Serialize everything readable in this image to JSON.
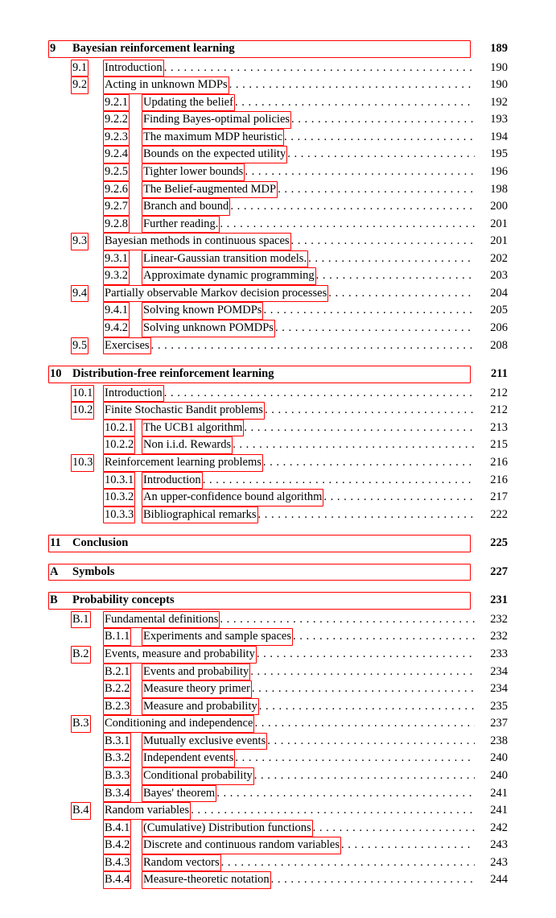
{
  "entries": [
    {
      "type": "chapter",
      "num": "9",
      "title": "Bayesian reinforcement learning",
      "page": "189"
    },
    {
      "type": "section",
      "num": "9.1",
      "title": "Introduction",
      "page": "190"
    },
    {
      "type": "section",
      "num": "9.2",
      "title": "Acting in unknown MDPs",
      "page": "190"
    },
    {
      "type": "subsection",
      "num": "9.2.1",
      "title": "Updating the belief",
      "page": "192"
    },
    {
      "type": "subsection",
      "num": "9.2.2",
      "title": "Finding Bayes-optimal policies",
      "page": "193"
    },
    {
      "type": "subsection",
      "num": "9.2.3",
      "title": "The maximum MDP heuristic",
      "page": "194"
    },
    {
      "type": "subsection",
      "num": "9.2.4",
      "title": "Bounds on the expected utility",
      "page": "195"
    },
    {
      "type": "subsection",
      "num": "9.2.5",
      "title": "Tighter lower bounds",
      "page": "196"
    },
    {
      "type": "subsection",
      "num": "9.2.6",
      "title": "The Belief-augmented MDP",
      "page": "198"
    },
    {
      "type": "subsection",
      "num": "9.2.7",
      "title": "Branch and bound",
      "page": "200"
    },
    {
      "type": "subsection",
      "num": "9.2.8",
      "title": "Further reading.",
      "page": "201"
    },
    {
      "type": "section",
      "num": "9.3",
      "title": "Bayesian methods in continuous spaces",
      "page": "201"
    },
    {
      "type": "subsection",
      "num": "9.3.1",
      "title": "Linear-Gaussian transition models.",
      "page": "202"
    },
    {
      "type": "subsection",
      "num": "9.3.2",
      "title": "Approximate dynamic programming",
      "page": "203"
    },
    {
      "type": "section",
      "num": "9.4",
      "title": "Partially observable Markov decision processes",
      "page": "204"
    },
    {
      "type": "subsection",
      "num": "9.4.1",
      "title": "Solving known POMDPs",
      "page": "205"
    },
    {
      "type": "subsection",
      "num": "9.4.2",
      "title": "Solving unknown POMDPs",
      "page": "206"
    },
    {
      "type": "section",
      "num": "9.5",
      "title": "Exercises",
      "page": "208"
    },
    {
      "type": "chapter",
      "num": "10",
      "title": "Distribution-free reinforcement learning",
      "page": "211"
    },
    {
      "type": "section",
      "num": "10.1",
      "title": "Introduction",
      "page": "212"
    },
    {
      "type": "section",
      "num": "10.2",
      "title": "Finite Stochastic Bandit problems",
      "page": "212"
    },
    {
      "type": "subsection",
      "num": "10.2.1",
      "title": "The UCB1 algorithm",
      "page": "213"
    },
    {
      "type": "subsection",
      "num": "10.2.2",
      "title": "Non i.i.d. Rewards",
      "page": "215"
    },
    {
      "type": "section",
      "num": "10.3",
      "title": "Reinforcement learning problems",
      "page": "216"
    },
    {
      "type": "subsection",
      "num": "10.3.1",
      "title": "Introduction",
      "page": "216"
    },
    {
      "type": "subsection",
      "num": "10.3.2",
      "title": "An upper-confidence bound algorithm",
      "page": "217"
    },
    {
      "type": "subsection",
      "num": "10.3.3",
      "title": "Bibliographical remarks",
      "page": "222"
    },
    {
      "type": "chapter",
      "num": "11",
      "title": "Conclusion",
      "page": "225"
    },
    {
      "type": "chapter",
      "num": "A",
      "title": "Symbols",
      "page": "227"
    },
    {
      "type": "chapter",
      "num": "B",
      "title": "Probability concepts",
      "page": "231"
    },
    {
      "type": "section",
      "num": "B.1",
      "title": "Fundamental definitions",
      "page": "232"
    },
    {
      "type": "subsection",
      "num": "B.1.1",
      "title": "Experiments and sample spaces",
      "page": "232"
    },
    {
      "type": "section",
      "num": "B.2",
      "title": "Events, measure and probability",
      "page": "233"
    },
    {
      "type": "subsection",
      "num": "B.2.1",
      "title": "Events and probability",
      "page": "234"
    },
    {
      "type": "subsection",
      "num": "B.2.2",
      "title": "Measure theory primer",
      "page": "234"
    },
    {
      "type": "subsection",
      "num": "B.2.3",
      "title": "Measure and probability",
      "page": "235"
    },
    {
      "type": "section",
      "num": "B.3",
      "title": "Conditioning and independence",
      "page": "237"
    },
    {
      "type": "subsection",
      "num": "B.3.1",
      "title": "Mutually exclusive events",
      "page": "238"
    },
    {
      "type": "subsection",
      "num": "B.3.2",
      "title": "Independent events",
      "page": "240"
    },
    {
      "type": "subsection",
      "num": "B.3.3",
      "title": "Conditional probability",
      "page": "240"
    },
    {
      "type": "subsection",
      "num": "B.3.4",
      "title": "Bayes' theorem",
      "page": "241"
    },
    {
      "type": "section",
      "num": "B.4",
      "title": "Random variables",
      "page": "241"
    },
    {
      "type": "subsection",
      "num": "B.4.1",
      "title": "(Cumulative) Distribution functions",
      "page": "242"
    },
    {
      "type": "subsection",
      "num": "B.4.2",
      "title": "Discrete and continuous random variables",
      "page": "243"
    },
    {
      "type": "subsection",
      "num": "B.4.3",
      "title": "Random vectors",
      "page": "243"
    },
    {
      "type": "subsection",
      "num": "B.4.4",
      "title": "Measure-theoretic notation",
      "page": "244"
    }
  ]
}
